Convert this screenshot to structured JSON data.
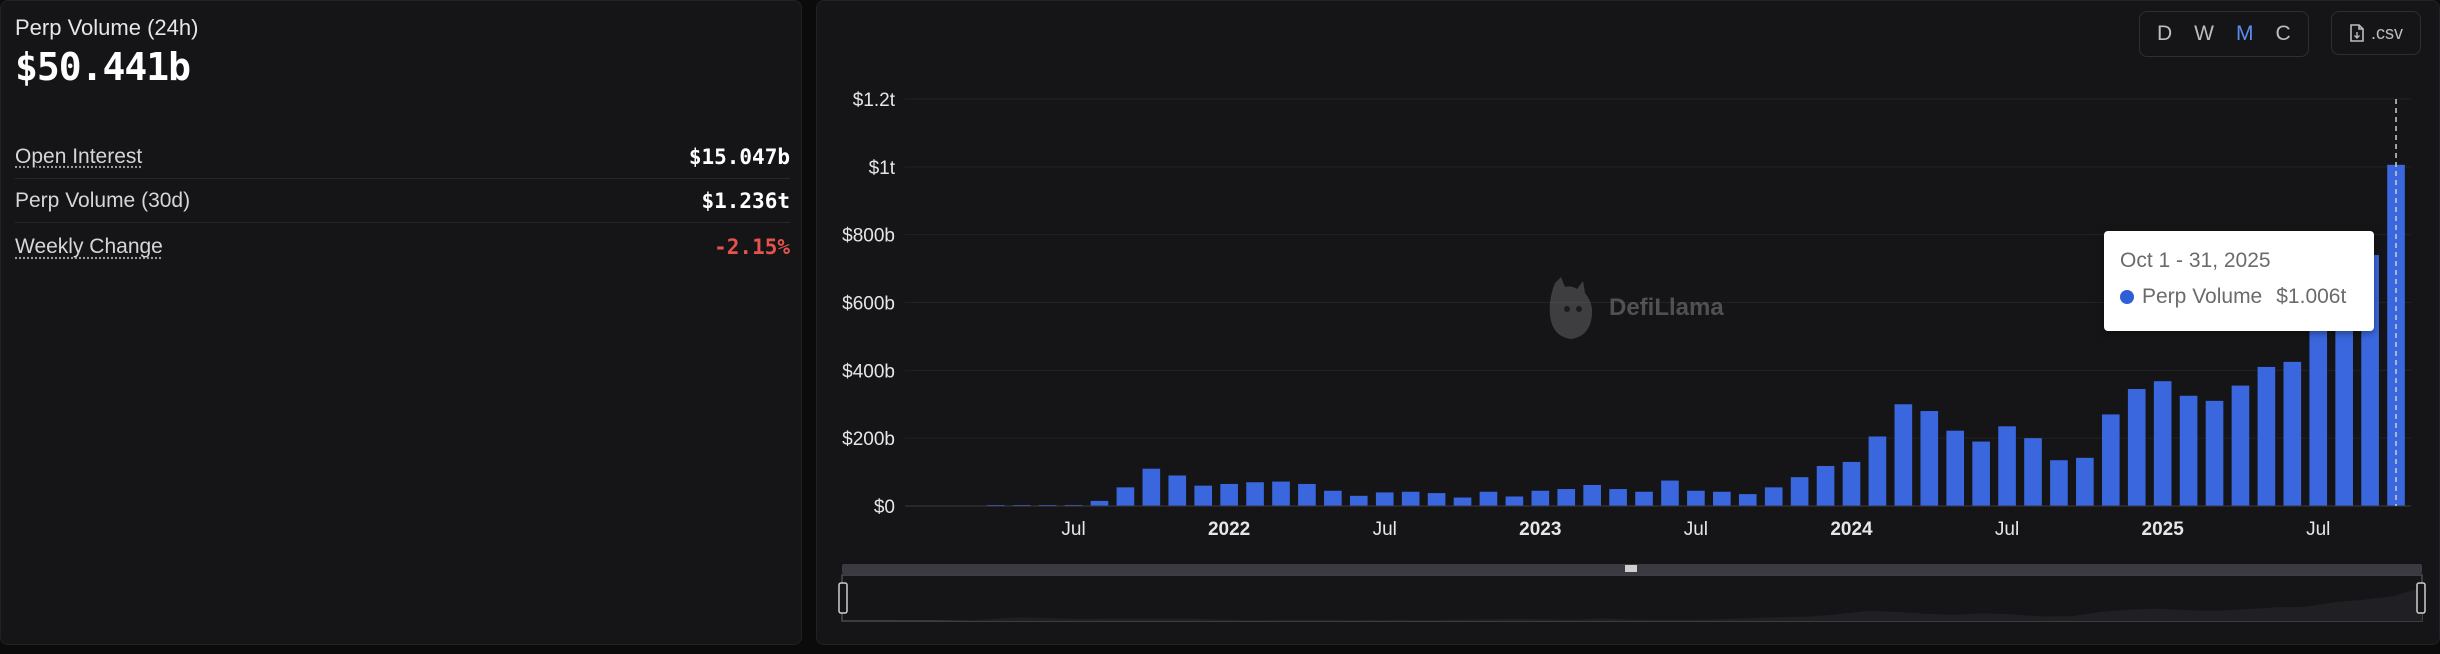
{
  "summary": {
    "volume_label": "Perp Volume (24h)",
    "volume_value": "$50.441b",
    "metrics": [
      {
        "label": "Open Interest",
        "value": "$15.047b"
      },
      {
        "label": "Perp Volume (30d)",
        "value": "$1.236t"
      },
      {
        "label": "Weekly Change",
        "value": "-2.15%"
      }
    ]
  },
  "controls": {
    "periods": [
      "D",
      "W",
      "M",
      "C"
    ],
    "active_period": "M",
    "csv_label": ".csv"
  },
  "watermark": "DefiLlama",
  "tooltip": {
    "date": "Oct 1 - 31, 2025",
    "series": "Perp Volume",
    "value": "$1.006t"
  },
  "colors": {
    "bar": "#3a67dd",
    "negative": "#e5544b",
    "active": "#5b8def"
  },
  "chart_data": {
    "type": "bar",
    "y_ticks": [
      "$0",
      "$200b",
      "$400b",
      "$600b",
      "$800b",
      "$1t",
      "$1.2t"
    ],
    "x_ticks": [
      {
        "label": "Jul",
        "index": 3,
        "bold": false
      },
      {
        "label": "2022",
        "index": 9,
        "bold": true
      },
      {
        "label": "Jul",
        "index": 15,
        "bold": false
      },
      {
        "label": "2023",
        "index": 21,
        "bold": true
      },
      {
        "label": "Jul",
        "index": 27,
        "bold": false
      },
      {
        "label": "2024",
        "index": 33,
        "bold": true
      },
      {
        "label": "Jul",
        "index": 39,
        "bold": false
      },
      {
        "label": "2025",
        "index": 45,
        "bold": true
      },
      {
        "label": "Jul",
        "index": 51,
        "bold": false
      }
    ],
    "series": [
      {
        "name": "Perp Volume",
        "values": [
          0.5,
          1,
          2,
          3,
          15,
          55,
          110,
          90,
          60,
          65,
          70,
          72,
          65,
          45,
          30,
          40,
          42,
          38,
          25,
          42,
          28,
          45,
          50,
          62,
          50,
          42,
          75,
          45,
          42,
          35,
          55,
          85,
          118,
          130,
          205,
          300,
          280,
          222,
          190,
          235,
          200,
          135,
          142,
          270,
          345,
          368,
          325,
          310,
          355,
          410,
          425,
          565,
          635,
          740,
          1006
        ]
      }
    ],
    "ylim": [
      0,
      1200
    ]
  }
}
